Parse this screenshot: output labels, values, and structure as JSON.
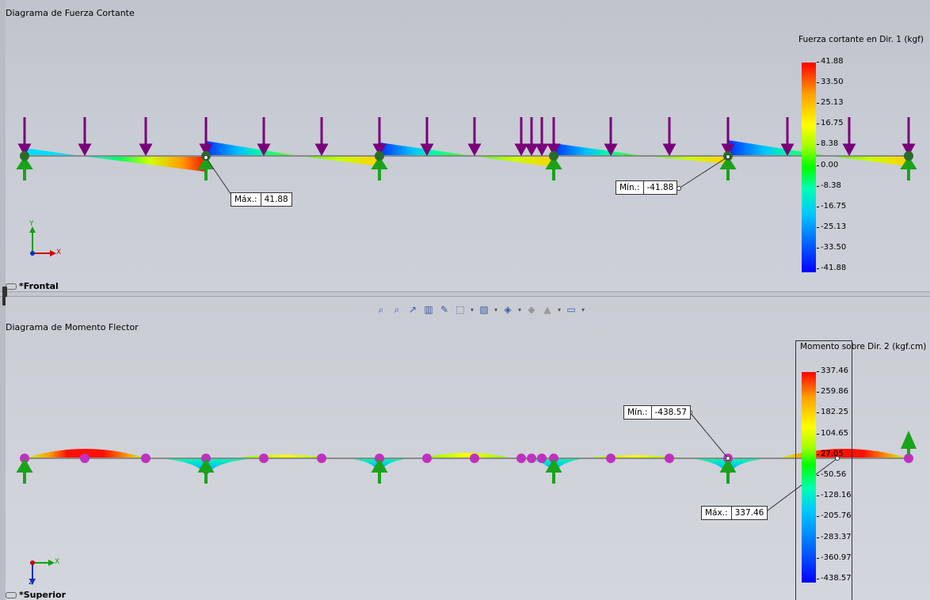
{
  "top": {
    "title": "Diagrama de Fuerza Cortante",
    "view_label": "*Frontal",
    "legend_title": "Fuerza cortante en Dir. 1 (kgf)",
    "legend_ticks": [
      "41.88",
      "33.50",
      "25.13",
      "16.75",
      "8.38",
      "0.00",
      "-8.38",
      "-16.75",
      "-25.13",
      "-33.50",
      "-41.88"
    ],
    "max_label": "Máx.:",
    "max_value": "41.88",
    "min_label": "Mín.:",
    "min_value": "-41.88",
    "axis_x": "X",
    "axis_y": "Y"
  },
  "bottom": {
    "title": "Diagrama de Momento Flector",
    "view_label": "*Superior",
    "legend_title": "Momento sobre Dir. 2 (kgf.cm)",
    "legend_ticks": [
      "337.46",
      "259.86",
      "182.25",
      "104.65",
      "27.05",
      "-50.56",
      "-128.16",
      "-205.76",
      "-283.37",
      "-360.97",
      "-438.57"
    ],
    "max_label": "Máx.:",
    "max_value": "337.46",
    "min_label": "Mín.:",
    "min_value": "-438.57",
    "axis_x": "X",
    "axis_z": "Z"
  },
  "toolbar": {
    "icons": [
      "zoom-fit-icon",
      "zoom-area-icon",
      "previous-view-icon",
      "section-view-icon",
      "dynamic-annotation-icon",
      "view-orientation-icon",
      "display-style-icon",
      "hide-show-icon",
      "edit-appearance-icon",
      "apply-scene-icon",
      "view-settings-icon"
    ]
  },
  "colors": {
    "load_arrow": "#7a007a",
    "support_arrow": "#1aa31a",
    "moment_dot": "#c030c0",
    "beam": "#8a8a8a"
  }
}
